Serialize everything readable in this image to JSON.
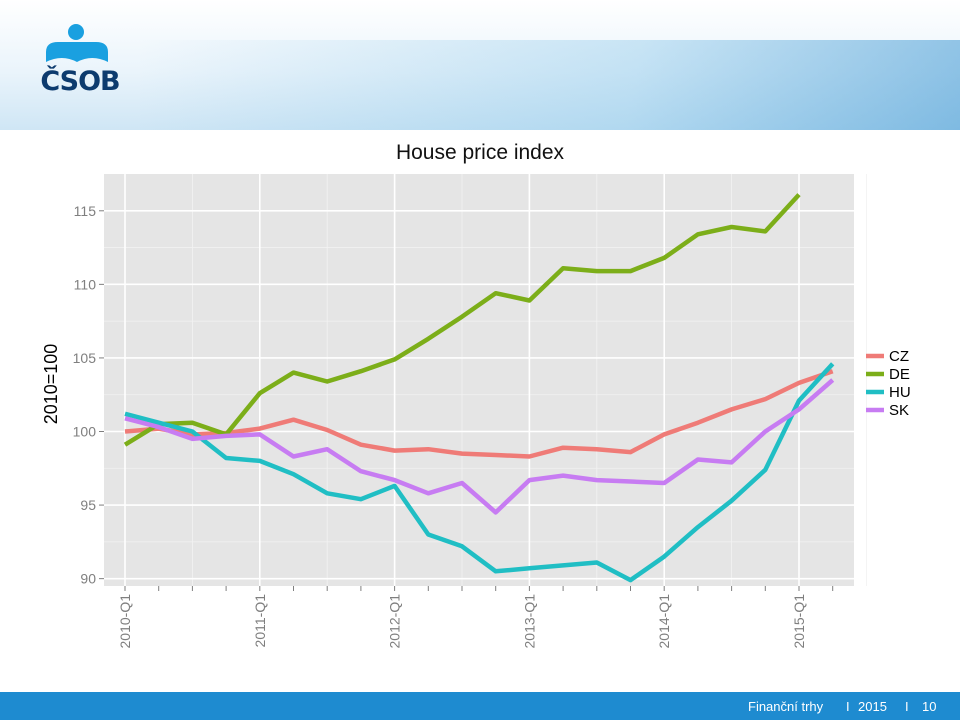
{
  "brand": {
    "logo_text": "ČSOB"
  },
  "footer": {
    "section": "Finanční trhy",
    "year": "2015",
    "page": "10",
    "separator": "I"
  },
  "chart_data": {
    "type": "line",
    "title": "House price index",
    "xlabel": "",
    "ylabel": "2010=100",
    "ylim": [
      89.5,
      117.5
    ],
    "yticks": [
      90,
      95,
      100,
      105,
      110,
      115
    ],
    "x_tick_labels": [
      "2010-Q1",
      "2011-Q1",
      "2012-Q1",
      "2013-Q1",
      "2014-Q1",
      "2015-Q1"
    ],
    "x": [
      "2010-Q1",
      "2010-Q2",
      "2010-Q3",
      "2010-Q4",
      "2011-Q1",
      "2011-Q2",
      "2011-Q3",
      "2011-Q4",
      "2012-Q1",
      "2012-Q2",
      "2012-Q3",
      "2012-Q4",
      "2013-Q1",
      "2013-Q2",
      "2013-Q3",
      "2013-Q4",
      "2014-Q1",
      "2014-Q2",
      "2014-Q3",
      "2014-Q4",
      "2015-Q1",
      "2015-Q2"
    ],
    "grid": true,
    "legend_position": "right",
    "series": [
      {
        "name": "CZ",
        "color": "#ef7b77",
        "values": [
          100.0,
          100.2,
          99.8,
          99.9,
          100.2,
          100.8,
          100.1,
          99.1,
          98.7,
          98.8,
          98.5,
          98.4,
          98.3,
          98.9,
          98.8,
          98.6,
          99.8,
          100.6,
          101.5,
          102.2,
          103.3,
          104.1
        ]
      },
      {
        "name": "DE",
        "color": "#7cae19",
        "values": [
          99.1,
          100.5,
          100.6,
          99.8,
          102.6,
          104.0,
          103.4,
          104.1,
          104.9,
          106.3,
          107.8,
          109.4,
          108.9,
          111.1,
          110.9,
          110.9,
          111.8,
          113.4,
          113.9,
          113.6,
          116.1,
          null
        ]
      },
      {
        "name": "HU",
        "color": "#20bec4",
        "values": [
          101.2,
          100.6,
          100.0,
          98.2,
          98.0,
          97.1,
          95.8,
          95.4,
          96.3,
          93.0,
          92.2,
          90.5,
          90.7,
          90.9,
          91.1,
          89.9,
          91.5,
          93.5,
          95.3,
          97.4,
          102.1,
          104.6
        ]
      },
      {
        "name": "SK",
        "color": "#c77cf2",
        "values": [
          100.9,
          100.3,
          99.5,
          99.7,
          99.8,
          98.3,
          98.8,
          97.3,
          96.7,
          95.8,
          96.5,
          94.5,
          96.7,
          97.0,
          96.7,
          96.6,
          96.5,
          98.1,
          97.9,
          100.0,
          101.5,
          103.5
        ]
      }
    ]
  }
}
